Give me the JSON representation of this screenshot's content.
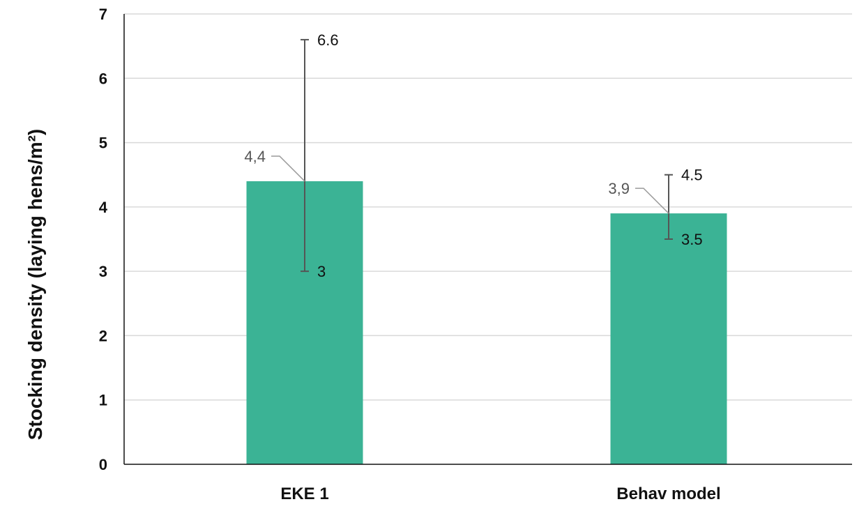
{
  "chart_data": {
    "type": "bar",
    "title": "",
    "xlabel": "",
    "ylabel": "Stocking density (laying hens/m²)",
    "ylim": [
      0,
      7
    ],
    "yticks": [
      "0",
      "1",
      "2",
      "3",
      "4",
      "5",
      "6",
      "7"
    ],
    "grid": true,
    "legend": "none",
    "categories": [
      "EKE 1",
      "Behav model"
    ],
    "series": [
      {
        "values": [
          4.4,
          3.9
        ],
        "value_labels": [
          "4,4",
          "3,9"
        ],
        "error_low": [
          3,
          3.5
        ],
        "error_high": [
          6.6,
          4.5
        ],
        "error_low_labels": [
          "3",
          "3.5"
        ],
        "error_high_labels": [
          "6.6",
          "4.5"
        ],
        "color": "#3bb395"
      }
    ]
  },
  "colors": {
    "bar": "#3bb395",
    "grid": "#d9d9d9",
    "axis": "#111111",
    "error_bar": "#555555",
    "leader_line": "#9a9a9a"
  }
}
